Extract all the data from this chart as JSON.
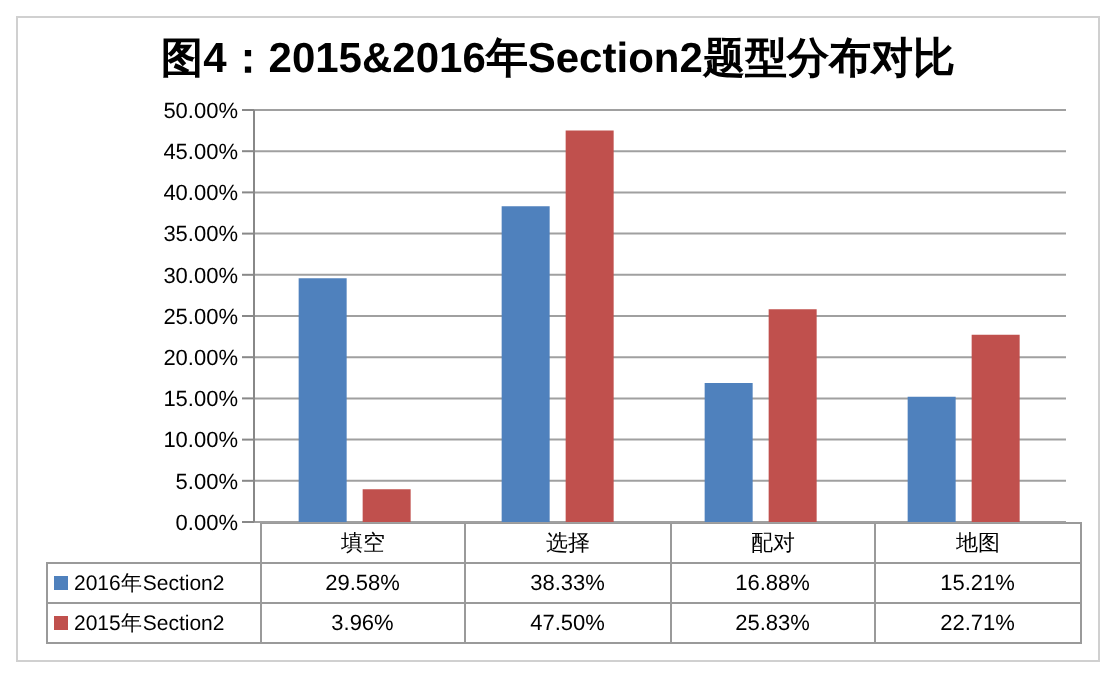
{
  "chart_data": {
    "type": "bar",
    "title": "图4：2015&2016年Section2题型分布对比",
    "categories": [
      "填空",
      "选择",
      "配对",
      "地图"
    ],
    "series": [
      {
        "name": "2016年Section2",
        "color": "#4f81bd",
        "values": [
          29.58,
          38.33,
          16.88,
          15.21
        ],
        "value_labels": [
          "29.58%",
          "38.33%",
          "16.88%",
          "15.21%"
        ]
      },
      {
        "name": "2015年Section2",
        "color": "#c0504d",
        "values": [
          3.96,
          47.5,
          25.83,
          22.71
        ],
        "value_labels": [
          "3.96%",
          "47.50%",
          "25.83%",
          "22.71%"
        ]
      }
    ],
    "ylim": [
      0,
      50
    ],
    "yticks": [
      {
        "value": 0,
        "label": "0.00%"
      },
      {
        "value": 5,
        "label": "5.00%"
      },
      {
        "value": 10,
        "label": "10.00%"
      },
      {
        "value": 15,
        "label": "15.00%"
      },
      {
        "value": 20,
        "label": "20.00%"
      },
      {
        "value": 25,
        "label": "25.00%"
      },
      {
        "value": 30,
        "label": "30.00%"
      },
      {
        "value": 35,
        "label": "35.00%"
      },
      {
        "value": 40,
        "label": "40.00%"
      },
      {
        "value": 45,
        "label": "45.00%"
      },
      {
        "value": 50,
        "label": "50.00%"
      }
    ],
    "grid": "y",
    "legend": "bottom"
  }
}
